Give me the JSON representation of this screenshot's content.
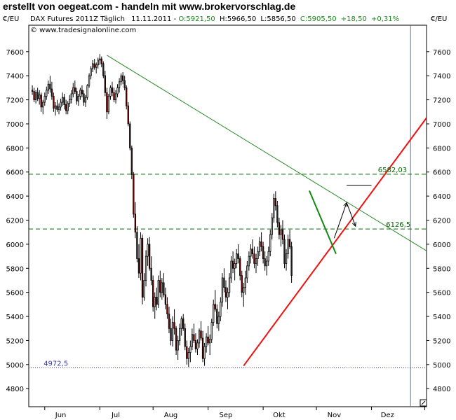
{
  "page_header": "erstellt von oegeat.com - handeln mit www.brokervorschlag.de",
  "chart_data": {
    "type": "candlestick",
    "title": "DAX Futures 2011Z Täglich",
    "date": "11.11.2011",
    "ohlc_text": {
      "open": "O:5921,50",
      "high": "H:5966,50",
      "low": "L:5856,50",
      "close": "C:5905,50",
      "change": "+18,50",
      "change_pct": "+0,31%"
    },
    "copyright": "© www.tradesignalonline.com",
    "unit_label": "€/EU",
    "ylim": [
      4650,
      7820
    ],
    "y_ticks": [
      4800,
      5000,
      5200,
      5400,
      5600,
      5800,
      6000,
      6200,
      6400,
      6600,
      6800,
      7000,
      7200,
      7400,
      7600
    ],
    "x_labels": [
      {
        "label": "Jun",
        "day": 10
      },
      {
        "label": "Jul",
        "day": 41
      },
      {
        "label": "Aug",
        "day": 72
      },
      {
        "label": "Sep",
        "day": 103
      },
      {
        "label": "Okt",
        "day": 133
      },
      {
        "label": "Nov",
        "day": 164
      },
      {
        "label": "Dez",
        "day": 194
      }
    ],
    "x_range": [
      -8,
      216
    ],
    "month_ticks": [
      1,
      32,
      62,
      93,
      124,
      154,
      185,
      215
    ],
    "horizontal_levels": [
      {
        "value": 6582.03,
        "label": "6582,03",
        "style": "dashed",
        "color": "#006600",
        "label_day": 205
      },
      {
        "value": 6126.5,
        "label": "6126,5",
        "style": "dashed",
        "color": "#006600",
        "label_day": 207
      },
      {
        "value": 4972.5,
        "label": "4972,5",
        "style": "dotted",
        "color": "#3333aa",
        "label_day": -2
      }
    ],
    "vertical_marker_day": 207,
    "trendlines": [
      {
        "name": "resistance",
        "color": "#228822",
        "points": [
          [
            36,
            7570
          ],
          [
            216,
            5945
          ]
        ]
      },
      {
        "name": "support",
        "color": "#ee1111",
        "points": [
          [
            113,
            4990
          ],
          [
            216,
            7050
          ]
        ]
      },
      {
        "name": "short-down",
        "color": "#118811",
        "points": [
          [
            150,
            6445
          ],
          [
            165,
            5920
          ]
        ]
      },
      {
        "name": "target-mark",
        "color": "#000000",
        "points": [
          [
            171,
            6490
          ],
          [
            185,
            6490
          ]
        ]
      }
    ],
    "arrows": [
      {
        "from": [
          164,
          6050
        ],
        "to": [
          171,
          6345
        ]
      },
      {
        "from": [
          171,
          6345
        ],
        "to": [
          176,
          6150
        ]
      }
    ],
    "up_color": "#ffffff",
    "down_color": "#8b0000",
    "candles": [
      [
        -6,
        7280,
        7320,
        7240,
        7270
      ],
      [
        -5,
        7270,
        7300,
        7180,
        7200
      ],
      [
        -4,
        7200,
        7280,
        7170,
        7260
      ],
      [
        -3,
        7260,
        7300,
        7190,
        7210
      ],
      [
        -2,
        7210,
        7280,
        7160,
        7240
      ],
      [
        -1,
        7240,
        7260,
        7100,
        7140
      ],
      [
        0,
        7140,
        7200,
        7080,
        7180
      ],
      [
        1,
        7180,
        7260,
        7150,
        7230
      ],
      [
        2,
        7230,
        7310,
        7200,
        7280
      ],
      [
        3,
        7280,
        7360,
        7250,
        7330
      ],
      [
        4,
        7330,
        7400,
        7260,
        7290
      ],
      [
        5,
        7290,
        7350,
        7200,
        7230
      ],
      [
        6,
        7230,
        7260,
        7100,
        7130
      ],
      [
        7,
        7130,
        7180,
        7070,
        7150
      ],
      [
        8,
        7150,
        7200,
        7100,
        7120
      ],
      [
        9,
        7120,
        7170,
        7080,
        7140
      ],
      [
        10,
        7140,
        7210,
        7110,
        7180
      ],
      [
        11,
        7180,
        7260,
        7150,
        7220
      ],
      [
        12,
        7220,
        7250,
        7120,
        7160
      ],
      [
        13,
        7160,
        7200,
        7080,
        7110
      ],
      [
        14,
        7110,
        7190,
        7080,
        7170
      ],
      [
        15,
        7170,
        7240,
        7140,
        7200
      ],
      [
        16,
        7200,
        7280,
        7170,
        7250
      ],
      [
        17,
        7250,
        7340,
        7220,
        7300
      ],
      [
        18,
        7300,
        7360,
        7250,
        7270
      ],
      [
        19,
        7270,
        7300,
        7160,
        7190
      ],
      [
        20,
        7190,
        7250,
        7150,
        7230
      ],
      [
        21,
        7230,
        7300,
        7200,
        7280
      ],
      [
        22,
        7280,
        7320,
        7220,
        7250
      ],
      [
        23,
        7250,
        7280,
        7150,
        7180
      ],
      [
        24,
        7180,
        7240,
        7140,
        7220
      ],
      [
        25,
        7220,
        7330,
        7200,
        7320
      ],
      [
        26,
        7320,
        7420,
        7300,
        7400
      ],
      [
        27,
        7400,
        7480,
        7370,
        7460
      ],
      [
        28,
        7460,
        7530,
        7430,
        7500
      ],
      [
        29,
        7500,
        7540,
        7450,
        7470
      ],
      [
        30,
        7470,
        7510,
        7420,
        7490
      ],
      [
        31,
        7490,
        7550,
        7460,
        7530
      ],
      [
        32,
        7530,
        7580,
        7490,
        7540
      ],
      [
        33,
        7540,
        7560,
        7470,
        7500
      ],
      [
        34,
        7500,
        7520,
        7380,
        7400
      ],
      [
        35,
        7400,
        7440,
        7230,
        7260
      ],
      [
        36,
        7260,
        7300,
        7040,
        7100
      ],
      [
        37,
        7100,
        7250,
        7080,
        7230
      ],
      [
        38,
        7230,
        7320,
        7200,
        7300
      ],
      [
        39,
        7300,
        7350,
        7230,
        7260
      ],
      [
        40,
        7260,
        7300,
        7180,
        7200
      ],
      [
        41,
        7200,
        7280,
        7170,
        7250
      ],
      [
        42,
        7250,
        7330,
        7220,
        7300
      ],
      [
        43,
        7300,
        7380,
        7260,
        7350
      ],
      [
        44,
        7350,
        7420,
        7320,
        7400
      ],
      [
        45,
        7400,
        7430,
        7330,
        7360
      ],
      [
        46,
        7360,
        7400,
        7280,
        7300
      ],
      [
        47,
        7300,
        7320,
        7120,
        7150
      ],
      [
        48,
        7150,
        7180,
        6980,
        7000
      ],
      [
        49,
        7000,
        7020,
        6780,
        6800
      ],
      [
        50,
        6800,
        6820,
        6540,
        6580
      ],
      [
        51,
        6580,
        6600,
        6220,
        6250
      ],
      [
        52,
        6250,
        6350,
        6050,
        6100
      ],
      [
        53,
        6100,
        6150,
        5850,
        5880
      ],
      [
        54,
        5880,
        6000,
        5720,
        5760
      ],
      [
        55,
        5760,
        6100,
        5700,
        6050
      ],
      [
        56,
        6050,
        6080,
        5500,
        5560
      ],
      [
        57,
        5560,
        5760,
        5530,
        5700
      ],
      [
        58,
        5700,
        5950,
        5650,
        5900
      ],
      [
        59,
        5900,
        6050,
        5820,
        6000
      ],
      [
        60,
        6000,
        6060,
        5780,
        5800
      ],
      [
        61,
        5800,
        5900,
        5660,
        5700
      ],
      [
        62,
        5700,
        5740,
        5440,
        5480
      ],
      [
        63,
        5480,
        5600,
        5380,
        5560
      ],
      [
        64,
        5560,
        5640,
        5450,
        5500
      ],
      [
        65,
        5500,
        5740,
        5470,
        5700
      ],
      [
        66,
        5700,
        5780,
        5560,
        5600
      ],
      [
        67,
        5600,
        5720,
        5540,
        5680
      ],
      [
        68,
        5680,
        5760,
        5560,
        5580
      ],
      [
        69,
        5580,
        5640,
        5460,
        5500
      ],
      [
        70,
        5500,
        5560,
        5380,
        5420
      ],
      [
        71,
        5420,
        5480,
        5260,
        5300
      ],
      [
        72,
        5300,
        5380,
        5160,
        5200
      ],
      [
        73,
        5200,
        5400,
        5150,
        5350
      ],
      [
        74,
        5350,
        5460,
        5250,
        5300
      ],
      [
        75,
        5300,
        5320,
        5080,
        5120
      ],
      [
        76,
        5120,
        5240,
        5040,
        5200
      ],
      [
        77,
        5200,
        5340,
        5160,
        5300
      ],
      [
        78,
        5300,
        5400,
        5240,
        5380
      ],
      [
        79,
        5380,
        5420,
        5280,
        5300
      ],
      [
        80,
        5300,
        5340,
        5120,
        5150
      ],
      [
        81,
        5150,
        5200,
        5000,
        5050
      ],
      [
        82,
        5050,
        5140,
        4980,
        5100
      ],
      [
        83,
        5100,
        5200,
        5020,
        5150
      ],
      [
        84,
        5150,
        5300,
        5120,
        5250
      ],
      [
        85,
        5250,
        5340,
        5180,
        5200
      ],
      [
        86,
        5200,
        5260,
        5100,
        5130
      ],
      [
        87,
        5130,
        5210,
        5080,
        5180
      ],
      [
        88,
        5180,
        5300,
        5140,
        5280
      ],
      [
        89,
        5280,
        5360,
        5200,
        5220
      ],
      [
        90,
        5220,
        5280,
        5020,
        5050
      ],
      [
        91,
        5050,
        5180,
        4990,
        5150
      ],
      [
        92,
        5150,
        5260,
        5100,
        5230
      ],
      [
        93,
        5230,
        5320,
        5160,
        5180
      ],
      [
        94,
        5180,
        5250,
        5080,
        5210
      ],
      [
        95,
        5210,
        5380,
        5180,
        5350
      ],
      [
        96,
        5350,
        5540,
        5320,
        5500
      ],
      [
        97,
        5500,
        5620,
        5440,
        5460
      ],
      [
        98,
        5460,
        5500,
        5300,
        5340
      ],
      [
        99,
        5340,
        5440,
        5280,
        5400
      ],
      [
        100,
        5400,
        5560,
        5360,
        5520
      ],
      [
        101,
        5520,
        5760,
        5480,
        5720
      ],
      [
        102,
        5720,
        5800,
        5600,
        5640
      ],
      [
        103,
        5640,
        5700,
        5520,
        5560
      ],
      [
        104,
        5560,
        5640,
        5460,
        5600
      ],
      [
        105,
        5600,
        5760,
        5560,
        5720
      ],
      [
        106,
        5720,
        5900,
        5680,
        5860
      ],
      [
        107,
        5860,
        5940,
        5760,
        5800
      ],
      [
        108,
        5800,
        5880,
        5700,
        5840
      ],
      [
        109,
        5840,
        5960,
        5800,
        5920
      ],
      [
        110,
        5920,
        6000,
        5840,
        5880
      ],
      [
        111,
        5880,
        5900,
        5700,
        5740
      ],
      [
        112,
        5740,
        5780,
        5560,
        5600
      ],
      [
        113,
        5600,
        5680,
        5480,
        5640
      ],
      [
        114,
        5640,
        5780,
        5580,
        5720
      ],
      [
        115,
        5720,
        5860,
        5680,
        5820
      ],
      [
        116,
        5820,
        5940,
        5780,
        5900
      ],
      [
        117,
        5900,
        6000,
        5840,
        5960
      ],
      [
        118,
        5960,
        6040,
        5880,
        5920
      ],
      [
        119,
        5920,
        5980,
        5800,
        5840
      ],
      [
        120,
        5840,
        5920,
        5760,
        5880
      ],
      [
        121,
        5880,
        5980,
        5820,
        5940
      ],
      [
        122,
        5940,
        6060,
        5900,
        6020
      ],
      [
        123,
        6020,
        6100,
        5940,
        5980
      ],
      [
        124,
        5980,
        6020,
        5840,
        5880
      ],
      [
        125,
        5880,
        5940,
        5780,
        5820
      ],
      [
        126,
        5820,
        5900,
        5740,
        5860
      ],
      [
        127,
        5860,
        5980,
        5820,
        5940
      ],
      [
        128,
        5940,
        6120,
        5900,
        6080
      ],
      [
        129,
        6080,
        6260,
        6040,
        6220
      ],
      [
        130,
        6220,
        6420,
        6180,
        6380
      ],
      [
        131,
        6380,
        6440,
        6280,
        6320
      ],
      [
        132,
        6320,
        6360,
        6140,
        6180
      ],
      [
        133,
        6180,
        6220,
        6040,
        6080
      ],
      [
        134,
        6080,
        6160,
        5980,
        6120
      ],
      [
        135,
        6120,
        6200,
        6000,
        6040
      ],
      [
        136,
        6040,
        6080,
        5800,
        5840
      ],
      [
        137,
        5840,
        5960,
        5780,
        5920
      ],
      [
        138,
        5920,
        6080,
        5880,
        6040
      ],
      [
        139,
        6040,
        6120,
        5960,
        5980
      ],
      [
        140,
        5980,
        6020,
        5680,
        5740
      ]
    ]
  }
}
